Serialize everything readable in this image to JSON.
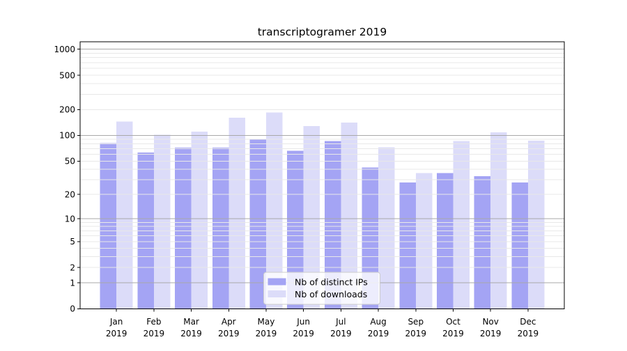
{
  "figure": {
    "background": "#ffffff"
  },
  "chart_data": {
    "type": "bar",
    "title": "transcriptogramer 2019",
    "categories": [
      "Jan 2019",
      "Feb 2019",
      "Mar 2019",
      "Apr 2019",
      "May 2019",
      "Jun 2019",
      "Jul 2019",
      "Aug 2019",
      "Sep 2019",
      "Oct 2019",
      "Nov 2019",
      "Dec 2019"
    ],
    "series": [
      {
        "name": "Nb of distinct IPs",
        "color": "#a4a4f4",
        "values": [
          81,
          63,
          72,
          72,
          91,
          66,
          86,
          42,
          28,
          36,
          33,
          28
        ]
      },
      {
        "name": "Nb of downloads",
        "color": "#dcdcf9",
        "values": [
          145,
          102,
          111,
          161,
          185,
          129,
          141,
          73,
          36,
          86,
          109,
          87
        ]
      }
    ],
    "xlabel": "",
    "ylabel": "",
    "yscale": "log1p",
    "ylim": [
      0,
      1220
    ],
    "y_ticks": [
      0,
      1,
      2,
      5,
      10,
      20,
      50,
      100,
      200,
      500,
      1000
    ],
    "y_major_gridlines": [
      1,
      10,
      100,
      1000
    ],
    "y_minor_gridlines": [
      2,
      3,
      4,
      5,
      6,
      7,
      8,
      9,
      20,
      30,
      40,
      50,
      60,
      70,
      80,
      90,
      200,
      300,
      400,
      500,
      600,
      700,
      800,
      900
    ],
    "grid": true,
    "legend_position": "lower center"
  },
  "colors": {
    "major_grid": "#a9a9a9",
    "minor_grid": "#e8e8e8",
    "spine": "#000000",
    "legend_border": "#cccccc",
    "legend_background": "rgba(255,255,255,0.8)"
  }
}
